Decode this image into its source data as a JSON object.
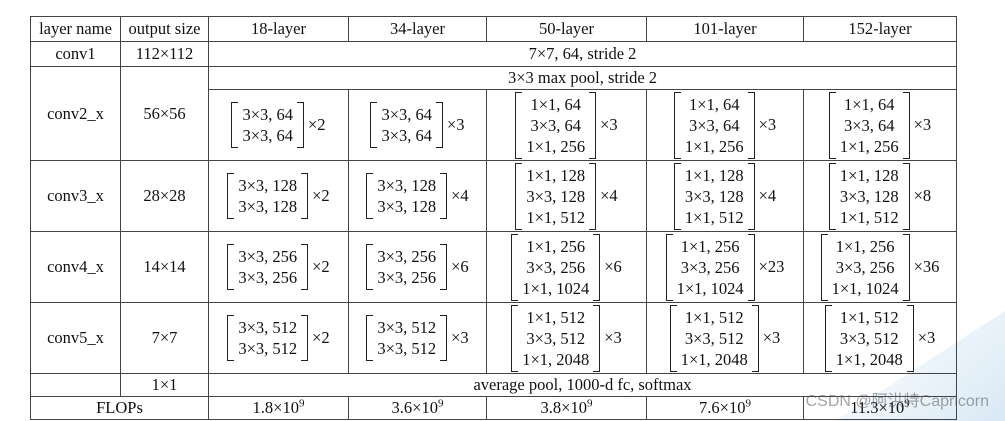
{
  "table": {
    "headers": [
      "layer name",
      "output size",
      "18-layer",
      "34-layer",
      "50-layer",
      "101-layer",
      "152-layer"
    ],
    "conv1": {
      "name": "conv1",
      "size": "112×112",
      "spec": "7×7, 64, stride 2"
    },
    "pool": "3×3 max pool, stride 2",
    "blocks": [
      {
        "name": "conv2_x",
        "size": "56×56",
        "cells": [
          {
            "lines": [
              "3×3, 64",
              "3×3, 64"
            ],
            "mult": "×2"
          },
          {
            "lines": [
              "3×3, 64",
              "3×3, 64"
            ],
            "mult": "×3"
          },
          {
            "lines": [
              "1×1, 64",
              "3×3, 64",
              "1×1, 256"
            ],
            "mult": "×3"
          },
          {
            "lines": [
              "1×1, 64",
              "3×3, 64",
              "1×1, 256"
            ],
            "mult": "×3"
          },
          {
            "lines": [
              "1×1, 64",
              "3×3, 64",
              "1×1, 256"
            ],
            "mult": "×3"
          }
        ]
      },
      {
        "name": "conv3_x",
        "size": "28×28",
        "cells": [
          {
            "lines": [
              "3×3, 128",
              "3×3, 128"
            ],
            "mult": "×2"
          },
          {
            "lines": [
              "3×3, 128",
              "3×3, 128"
            ],
            "mult": "×4"
          },
          {
            "lines": [
              "1×1, 128",
              "3×3, 128",
              "1×1, 512"
            ],
            "mult": "×4"
          },
          {
            "lines": [
              "1×1, 128",
              "3×3, 128",
              "1×1, 512"
            ],
            "mult": "×4"
          },
          {
            "lines": [
              "1×1, 128",
              "3×3, 128",
              "1×1, 512"
            ],
            "mult": "×8"
          }
        ]
      },
      {
        "name": "conv4_x",
        "size": "14×14",
        "cells": [
          {
            "lines": [
              "3×3, 256",
              "3×3, 256"
            ],
            "mult": "×2"
          },
          {
            "lines": [
              "3×3, 256",
              "3×3, 256"
            ],
            "mult": "×6"
          },
          {
            "lines": [
              "1×1, 256",
              "3×3, 256",
              "1×1, 1024"
            ],
            "mult": "×6"
          },
          {
            "lines": [
              "1×1, 256",
              "3×3, 256",
              "1×1, 1024"
            ],
            "mult": "×23"
          },
          {
            "lines": [
              "1×1, 256",
              "3×3, 256",
              "1×1, 1024"
            ],
            "mult": "×36"
          }
        ]
      },
      {
        "name": "conv5_x",
        "size": "7×7",
        "cells": [
          {
            "lines": [
              "3×3, 512",
              "3×3, 512"
            ],
            "mult": "×2"
          },
          {
            "lines": [
              "3×3, 512",
              "3×3, 512"
            ],
            "mult": "×3"
          },
          {
            "lines": [
              "1×1, 512",
              "3×3, 512",
              "1×1, 2048"
            ],
            "mult": "×3"
          },
          {
            "lines": [
              "1×1, 512",
              "3×3, 512",
              "1×1, 2048"
            ],
            "mult": "×3"
          },
          {
            "lines": [
              "1×1, 512",
              "3×3, 512",
              "1×1, 2048"
            ],
            "mult": "×3"
          }
        ]
      }
    ],
    "final": {
      "size": "1×1",
      "spec": "average pool, 1000-d fc, softmax"
    },
    "flops": {
      "label": "FLOPs",
      "values": [
        {
          "base": "1.8×10",
          "exp": "9"
        },
        {
          "base": "3.6×10",
          "exp": "9"
        },
        {
          "base": "3.8×10",
          "exp": "9"
        },
        {
          "base": "7.6×10",
          "exp": "9"
        },
        {
          "base": "11.3×10",
          "exp": "9"
        }
      ]
    }
  },
  "watermark": "CSDN @阿洪特Capricorn"
}
